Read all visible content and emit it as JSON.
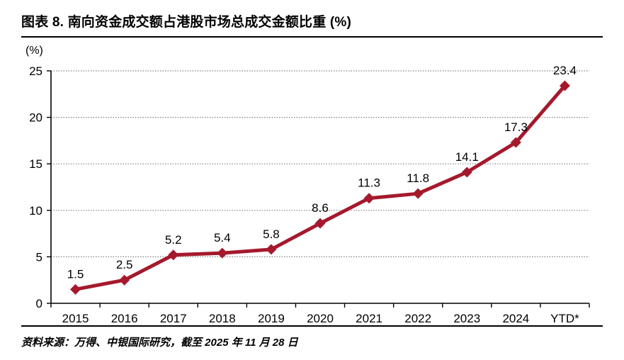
{
  "header": {
    "title": "图表 8. 南向资金成交额占港股市场总成交金额比重 (%)"
  },
  "footer": {
    "source": "资料来源：万得、中银国际研究，截至 2025 年 11 月 28 日"
  },
  "chart_data": {
    "type": "line",
    "title": "南向资金成交额占港股市场总成交金额比重",
    "categories": [
      "2015",
      "2016",
      "2017",
      "2018",
      "2019",
      "2020",
      "2021",
      "2022",
      "2023",
      "2024",
      "YTD*"
    ],
    "values": [
      1.5,
      2.5,
      5.2,
      5.4,
      5.8,
      8.6,
      11.3,
      11.8,
      14.1,
      17.3,
      23.4
    ],
    "data_labels": [
      "1.5",
      "2.5",
      "5.2",
      "5.4",
      "5.8",
      "8.6",
      "11.3",
      "11.8",
      "14.1",
      "17.3",
      "23.4"
    ],
    "xlabel": "",
    "ylabel": "(%)",
    "ylim": [
      0,
      25
    ],
    "ytick_step": 5,
    "ytick_labels": [
      "0",
      "5",
      "10",
      "15",
      "20",
      "25"
    ],
    "grid": "horizontal-dotted",
    "legend_position": "none",
    "colors": {
      "line": "#A5192D",
      "marker": "#A5192D",
      "grid": "#808080",
      "axis": "#000000",
      "label": "#000000"
    }
  }
}
